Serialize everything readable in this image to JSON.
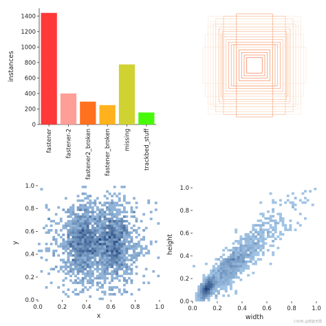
{
  "watermark": "CSDN @想就无限",
  "chart_data": [
    {
      "type": "bar",
      "ylabel": "instances",
      "categories": [
        "fastener",
        "fastener-2",
        "fastener2_broken",
        "fastener_broken",
        "missing",
        "trackbed_stuff"
      ],
      "values": [
        1440,
        400,
        295,
        250,
        775,
        155
      ],
      "colors": [
        "#ff3838",
        "#ff9d97",
        "#ff701f",
        "#ffb21d",
        "#cfd231",
        "#48f90a"
      ],
      "ylim": [
        0,
        1500
      ],
      "yticks": [
        0,
        200,
        400,
        600,
        800,
        1000,
        1200,
        1400
      ]
    },
    {
      "type": "box-overlay",
      "description_color": "#ff6a2a",
      "boxes": [
        [
          0.5,
          0.5,
          0.9,
          0.95
        ],
        [
          0.5,
          0.5,
          0.85,
          0.85
        ],
        [
          0.5,
          0.5,
          0.8,
          0.8
        ],
        [
          0.5,
          0.5,
          0.75,
          0.8
        ],
        [
          0.5,
          0.5,
          0.7,
          0.7
        ],
        [
          0.5,
          0.5,
          0.65,
          0.6
        ],
        [
          0.5,
          0.5,
          0.6,
          0.55
        ],
        [
          0.5,
          0.5,
          0.55,
          0.5
        ],
        [
          0.5,
          0.5,
          0.5,
          0.45
        ],
        [
          0.5,
          0.5,
          0.45,
          0.4
        ],
        [
          0.5,
          0.5,
          0.4,
          0.4
        ],
        [
          0.5,
          0.5,
          0.35,
          0.35
        ],
        [
          0.5,
          0.5,
          0.3,
          0.3
        ],
        [
          0.5,
          0.5,
          0.25,
          0.25
        ],
        [
          0.5,
          0.5,
          0.2,
          0.2
        ],
        [
          0.5,
          0.5,
          0.15,
          0.15
        ],
        [
          0.5,
          0.5,
          1.0,
          0.35
        ],
        [
          0.5,
          0.5,
          0.35,
          1.0
        ],
        [
          0.5,
          0.5,
          0.95,
          0.6
        ],
        [
          0.5,
          0.5,
          0.6,
          0.95
        ],
        [
          0.5,
          0.5,
          0.9,
          0.75
        ],
        [
          0.5,
          0.5,
          0.75,
          0.9
        ],
        [
          0.5,
          0.5,
          0.68,
          0.74
        ],
        [
          0.5,
          0.5,
          0.62,
          0.66
        ]
      ]
    },
    {
      "type": "heatmap",
      "xlabel": "x",
      "ylabel": "y",
      "xlim": [
        0,
        1
      ],
      "ylim": [
        0,
        1
      ],
      "xticks": [
        0.0,
        0.2,
        0.4,
        0.6,
        0.8,
        1.0
      ],
      "yticks": [
        0.0,
        0.2,
        0.4,
        0.6,
        0.8,
        1.0
      ],
      "clusters": [
        {
          "x": 0.38,
          "y": 0.5,
          "sx": 0.08,
          "sy": 0.16,
          "n": 900
        },
        {
          "x": 0.62,
          "y": 0.5,
          "sx": 0.08,
          "sy": 0.16,
          "n": 900
        },
        {
          "x": 0.5,
          "y": 0.5,
          "sx": 0.25,
          "sy": 0.25,
          "n": 600
        }
      ]
    },
    {
      "type": "heatmap",
      "xlabel": "width",
      "ylabel": "height",
      "xlim": [
        0,
        1
      ],
      "ylim": [
        0,
        1
      ],
      "xticks": [
        0.0,
        0.2,
        0.4,
        0.6,
        0.8,
        1.0
      ],
      "yticks": [
        0.0,
        0.2,
        0.4,
        0.6,
        0.8,
        1.0
      ],
      "clusters": [
        {
          "x": 0.12,
          "y": 0.2,
          "sx": 0.03,
          "sy": 0.06,
          "n": 500
        },
        {
          "x": 0.3,
          "y": 0.3,
          "sx": 0.12,
          "sy": 0.12,
          "n": 900
        },
        {
          "x": 0.55,
          "y": 0.55,
          "sx": 0.18,
          "sy": 0.18,
          "n": 300
        }
      ]
    }
  ]
}
